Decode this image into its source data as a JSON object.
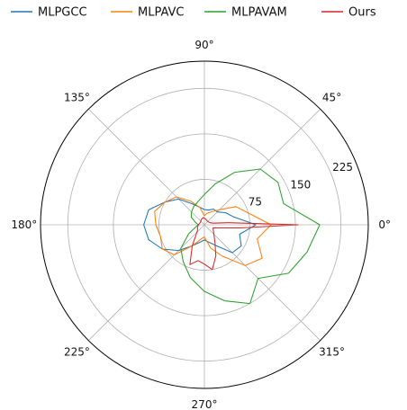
{
  "chart_data": {
    "type": "polar-line",
    "title": "",
    "legend": {
      "placement": "top",
      "columns": 4
    },
    "theta_labels": [
      "0°",
      "45°",
      "90°",
      "135°",
      "180°",
      "225°",
      "270°",
      "315°"
    ],
    "theta_label_angles": [
      0,
      45,
      90,
      135,
      180,
      225,
      270,
      315
    ],
    "r_ticks": [
      75,
      150,
      225
    ],
    "r_max": 270,
    "r_label_angle_deg": 22.5,
    "grid": true,
    "series": [
      {
        "name": "MLPGCC",
        "color": "#1f77b4",
        "angles_deg": [
          0,
          15,
          30,
          45,
          60,
          75,
          90,
          105,
          120,
          135,
          150,
          165,
          180,
          195,
          210,
          225,
          240,
          255,
          270,
          285,
          300,
          315,
          330,
          345,
          360
        ],
        "r": [
          85,
          50,
          40,
          30,
          30,
          25,
          25,
          30,
          40,
          60,
          75,
          95,
          100,
          95,
          80,
          60,
          40,
          30,
          25,
          30,
          40,
          65,
          70,
          60,
          85
        ]
      },
      {
        "name": "MLPAVC",
        "color": "#ff7f0e",
        "angles_deg": [
          0,
          15,
          30,
          45,
          60,
          75,
          90,
          105,
          120,
          135,
          150,
          165,
          180,
          195,
          210,
          225,
          240,
          255,
          270,
          285,
          300,
          315,
          330,
          345,
          360
        ],
        "r": [
          110,
          75,
          60,
          35,
          25,
          20,
          15,
          30,
          45,
          65,
          75,
          85,
          80,
          75,
          80,
          70,
          40,
          25,
          20,
          40,
          60,
          95,
          110,
          90,
          110
        ]
      },
      {
        "name": "MLPAVAM",
        "color": "#2ca02c",
        "angles_deg": [
          0,
          15,
          30,
          45,
          60,
          75,
          90,
          105,
          120,
          135,
          150,
          165,
          180,
          195,
          210,
          225,
          240,
          255,
          270,
          285,
          300,
          315,
          330,
          345,
          360
        ],
        "r": [
          190,
          135,
          140,
          130,
          100,
          70,
          50,
          40,
          35,
          30,
          25,
          15,
          10,
          15,
          30,
          55,
          70,
          90,
          110,
          130,
          150,
          125,
          160,
          175,
          190
        ]
      },
      {
        "name": "Ours",
        "color": "#d62728",
        "angles_deg": [
          0,
          5,
          10,
          20,
          40,
          60,
          80,
          100,
          120,
          140,
          160,
          180,
          200,
          220,
          240,
          250,
          260,
          270,
          280,
          290,
          300,
          320,
          340,
          355,
          360
        ],
        "r": [
          155,
          40,
          15,
          10,
          8,
          8,
          10,
          12,
          10,
          8,
          8,
          10,
          12,
          15,
          40,
          70,
          60,
          65,
          75,
          55,
          35,
          20,
          15,
          60,
          155
        ]
      }
    ]
  }
}
